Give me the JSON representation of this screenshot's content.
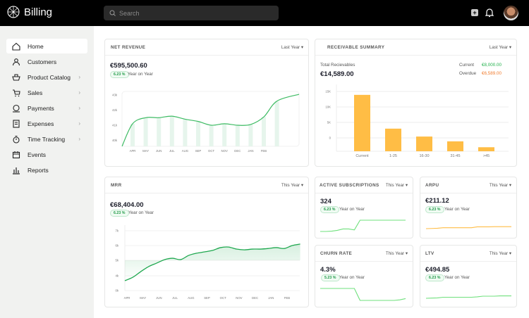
{
  "app": {
    "title": "Billing",
    "search_placeholder": "Search",
    "icons": [
      "logo-icon",
      "search-icon",
      "plus-icon",
      "bell-icon",
      "avatar"
    ]
  },
  "sidebar": {
    "items": [
      {
        "label": "Home",
        "icon": "home-icon",
        "active": true,
        "chevron": false
      },
      {
        "label": "Customers",
        "icon": "user-icon",
        "chevron": false
      },
      {
        "label": "Product Catalog",
        "icon": "basket-icon",
        "chevron": true
      },
      {
        "label": "Sales",
        "icon": "cart-icon",
        "chevron": true
      },
      {
        "label": "Payments",
        "icon": "payment-icon",
        "chevron": true
      },
      {
        "label": "Expenses",
        "icon": "receipt-icon",
        "chevron": true
      },
      {
        "label": "Time Tracking",
        "icon": "stopwatch-icon",
        "chevron": true
      },
      {
        "label": "Events",
        "icon": "calendar-icon",
        "chevron": false
      },
      {
        "label": "Reports",
        "icon": "bar-chart-icon",
        "chevron": false
      }
    ]
  },
  "net_revenue": {
    "title": "NET REVENUE",
    "period": "Last Year",
    "value": "€595,500.60",
    "badge": "6.23 %",
    "badge_label": "Year on Year"
  },
  "receivable": {
    "title": "RECEIVABLE SUMMARY",
    "period": "Last Year",
    "total_label": "Total Recievables",
    "total": "€14,589.00",
    "current_label": "Current",
    "current_value": "€8,000.00",
    "overdue_label": "Overdue",
    "overdue_value": "€6,589.00",
    "current_color": "#22b14c",
    "overdue_color": "#f07c2e"
  },
  "mrr": {
    "title": "MRR",
    "period": "This Year",
    "value": "€68,404.00",
    "badge": "6.23 %",
    "badge_label": "Year on Year"
  },
  "active_subscriptions": {
    "title": "ACTIVE SUBSCRIPTIONS",
    "period": "This Year",
    "value": "324",
    "badge": "6.23 %",
    "badge_label": "Year on Year"
  },
  "arpu": {
    "title": "ARPU",
    "period": "This Year",
    "value": "€211.12",
    "badge": "6.23 %",
    "badge_label": "Year on Year"
  },
  "churn": {
    "title": "CHURN RATE",
    "period": "This Year",
    "value": "4.3%",
    "badge": "5.23 %",
    "badge_label": "Year on Year"
  },
  "ltv": {
    "title": "LTV",
    "period": "This Year",
    "value": "€494.85",
    "badge": "6.23 %",
    "badge_label": "Year on Year"
  },
  "chart_data": [
    {
      "id": "net_revenue",
      "type": "line",
      "x_tick_labels": [
        "APR",
        "MAY",
        "JUN",
        "JUL",
        "AUG",
        "SEP",
        "OCT",
        "NOV",
        "DEC",
        "JAN",
        "FEB"
      ],
      "y_tick_labels": [
        "43k",
        "42k",
        "41k",
        "40k"
      ],
      "ylim": [
        39.6,
        43.1
      ],
      "bar_values_k": [
        41.1,
        41.5,
        41.5,
        41.6,
        41.4,
        41.25,
        41.0,
        41.1,
        41.0,
        41.05,
        41.55,
        42.6
      ],
      "line_start_k": 39.6,
      "line_end_k": 43.05,
      "color": "#3dbb63",
      "bar_color": "#e6f5ec"
    },
    {
      "id": "receivable",
      "type": "bar",
      "categories": [
        "Current",
        "1-25",
        "16-30",
        "31-45",
        ">45"
      ],
      "values": [
        13900,
        3000,
        450,
        -1100,
        -3000
      ],
      "y_tick_labels": [
        "15K",
        "10K",
        "5K",
        "0"
      ],
      "ylim": [
        -4300,
        15000
      ],
      "color": "#ffbd45",
      "grid": true
    },
    {
      "id": "mrr",
      "type": "area",
      "x_tick_labels": [
        "APR",
        "MAY",
        "JUN",
        "JUL",
        "AUG",
        "SEP",
        "OCT",
        "NOV",
        "DEC",
        "JAN",
        "FEB"
      ],
      "y_tick_labels": [
        "7k",
        "6k",
        "5k",
        "4k",
        "0k"
      ],
      "values_k": [
        2.67,
        3.6,
        4.27,
        4.6,
        4.82,
        5.05,
        5.14,
        5.05,
        5.33,
        5.48,
        5.57,
        5.67,
        5.86,
        5.9,
        5.76,
        5.71,
        5.76,
        5.76,
        5.8,
        5.86,
        5.8,
        6.0,
        6.1
      ],
      "color": "#1fa84f"
    },
    {
      "id": "active_subscriptions",
      "type": "line",
      "values": [
        0,
        0,
        3,
        10,
        22,
        22,
        14,
        100,
        100,
        100,
        100,
        100,
        100,
        100,
        100,
        100
      ],
      "color": "#6fe07c"
    },
    {
      "id": "arpu",
      "type": "line",
      "values": [
        0,
        2,
        4,
        10,
        10,
        10,
        10,
        10,
        10,
        20,
        20,
        20,
        22,
        22,
        22,
        22
      ],
      "color": "#ffbd45"
    },
    {
      "id": "churn",
      "type": "line",
      "values": [
        100,
        100,
        100,
        100,
        100,
        100,
        100,
        0,
        0,
        0,
        0,
        0,
        0,
        0,
        5,
        15
      ],
      "color": "#6fe07c"
    },
    {
      "id": "ltv",
      "type": "line",
      "values": [
        0,
        2,
        4,
        10,
        10,
        10,
        10,
        10,
        10,
        14,
        20,
        20,
        20,
        23,
        23,
        23
      ],
      "color": "#6fe07c"
    }
  ]
}
